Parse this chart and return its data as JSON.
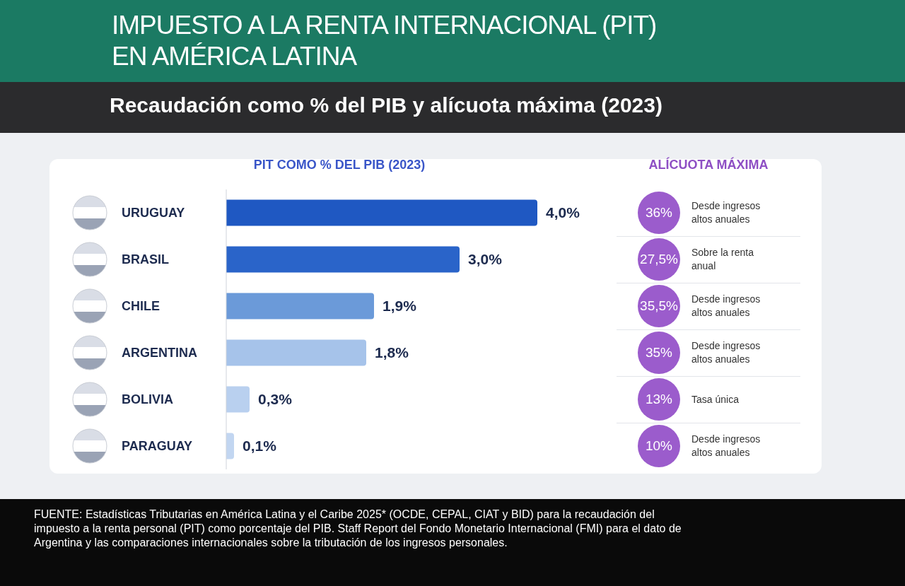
{
  "chart_data": [
    {
      "type": "bar",
      "orientation": "horizontal",
      "title": "IMPUESTO A LA RENTA INTERNACIONAL (PIT) EN AMÉRICA LATINA",
      "subtitle": "Recaudación como % del PIB y alícuota máxima (2023)",
      "xlabel": "PIT COMO % DEL PIB (2023)",
      "categories": [
        "URUGUAY",
        "BRASIL",
        "CHILE",
        "ARGENTINA",
        "BOLIVIA",
        "PARAGUAY"
      ],
      "values": [
        4.0,
        3.0,
        1.9,
        1.8,
        0.3,
        0.1
      ],
      "colors": [
        "#1f58c2",
        "#2a64c9",
        "#6b9ad9",
        "#a6c3ea",
        "#b9d0ef",
        "#c2d6f1"
      ],
      "value_labels": [
        "4,0%",
        "3,0%",
        "1,9%",
        "1,8%",
        "0,3%",
        "0,1%"
      ],
      "annotations": [
        "FUENTE: Estadísticas Tributarias en América Latina y el Caribe 2025* (OCDE, CEPAL, CIAT y BID) para la recaudación del impuesto a la renta personal (PIT) como porcentaje del PIB. Staff Report del Fondo Monetario Internacional (FMI) para el dato de Argentina y las comparaciones internacionales sobre la tributación de los ingresos personales."
      ]
    },
    {
      "type": "other",
      "title": "ALÍCUOTA MÁXIMA",
      "categories": [
        "36%",
        "27,5%",
        "35,5%",
        "35%",
        "13%",
        "10%"
      ],
      "annotations": [
        "Desde ingresos altos anuales",
        "Sobre la renta anual",
        "Desde ingresos altos anuales",
        "Desde ingresos altos anuales",
        "Tasa única",
        "Desde ingresos altos anuales"
      ]
    }
  ]
}
